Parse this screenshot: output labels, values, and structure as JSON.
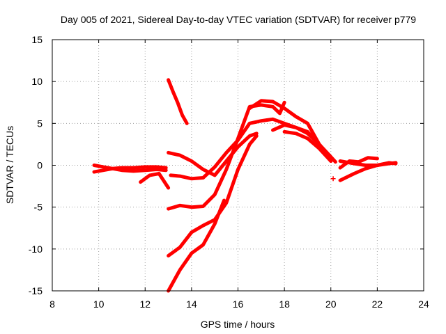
{
  "chart_data": {
    "type": "scatter",
    "title": "Day 005 of 2021, Sidereal Day-to-day VTEC variation (SDTVAR) for receiver p779",
    "xlabel": "GPS time / hours",
    "ylabel": "SDTVAR / TECUs",
    "xlim": [
      8,
      24
    ],
    "ylim": [
      -15,
      15
    ],
    "xticks": [
      8,
      10,
      12,
      14,
      16,
      18,
      20,
      22,
      24
    ],
    "yticks": [
      -15,
      -10,
      -5,
      0,
      5,
      10,
      15
    ],
    "grid": true,
    "legend": "none",
    "color": "#ff0000",
    "series": [
      {
        "x": [
          9.8,
          10.2,
          10.6,
          11.0,
          11.5,
          12.0,
          12.5,
          12.9
        ],
        "y": [
          0.0,
          -0.2,
          -0.4,
          -0.6,
          -0.7,
          -0.6,
          -0.5,
          -0.6
        ]
      },
      {
        "x": [
          9.8,
          10.2,
          10.6,
          11.0,
          11.5,
          12.0,
          12.5,
          12.9
        ],
        "y": [
          -0.8,
          -0.6,
          -0.4,
          -0.3,
          -0.3,
          -0.2,
          -0.2,
          -0.3
        ]
      },
      {
        "x": [
          11.8,
          12.2,
          12.6,
          13.0
        ],
        "y": [
          -2.0,
          -1.2,
          -1.0,
          -2.7
        ]
      },
      {
        "x": [
          13.0,
          13.2,
          13.4,
          13.6,
          13.8
        ],
        "y": [
          10.2,
          8.8,
          7.5,
          6.0,
          5.0
        ]
      },
      {
        "x": [
          13.0,
          13.5,
          14.0,
          14.5,
          15.0,
          15.5,
          16.0,
          16.5,
          16.8
        ],
        "y": [
          1.5,
          1.2,
          0.5,
          -0.5,
          -1.2,
          0.5,
          2.2,
          3.5,
          3.8
        ]
      },
      {
        "x": [
          13.1,
          13.5,
          14.0,
          14.5,
          15.0,
          15.5,
          16.0,
          16.5,
          17.0,
          17.5,
          18.0,
          18.5,
          19.0,
          19.5,
          20.0,
          20.2
        ],
        "y": [
          -1.2,
          -1.3,
          -1.6,
          -1.5,
          -0.2,
          1.5,
          3.0,
          5.0,
          5.3,
          5.5,
          5.0,
          4.5,
          3.8,
          2.5,
          1.0,
          0.4
        ]
      },
      {
        "x": [
          13.0,
          13.5,
          14.0,
          14.5,
          15.0,
          15.5,
          16.0,
          16.5,
          17.0,
          17.5,
          17.8,
          18.0
        ],
        "y": [
          -5.2,
          -4.8,
          -5.0,
          -4.9,
          -3.5,
          -0.5,
          3.2,
          7.0,
          7.2,
          7.0,
          6.2,
          7.5
        ]
      },
      {
        "x": [
          13.0,
          13.5,
          14.0,
          14.5,
          15.0,
          15.5,
          16.0,
          16.5,
          16.8
        ],
        "y": [
          -10.8,
          -9.8,
          -8.0,
          -7.2,
          -6.5,
          -4.5,
          -0.5,
          2.5,
          3.5
        ]
      },
      {
        "x": [
          13.0,
          13.5,
          14.0,
          14.5,
          15.0,
          15.4
        ],
        "y": [
          -15.0,
          -12.5,
          -10.5,
          -9.5,
          -7.0,
          -4.2
        ]
      },
      {
        "x": [
          16.5,
          17.0,
          17.5,
          18.0,
          18.5,
          19.0,
          19.5,
          20.0
        ],
        "y": [
          6.8,
          7.7,
          7.6,
          6.8,
          5.8,
          5.0,
          2.5,
          0.8
        ]
      },
      {
        "x": [
          17.5,
          18.0,
          18.5,
          19.0,
          19.5,
          20.0
        ],
        "y": [
          4.2,
          4.8,
          4.5,
          4.0,
          2.5,
          0.5
        ]
      },
      {
        "x": [
          18.0,
          18.5,
          19.0,
          19.5,
          20.0
        ],
        "y": [
          4.0,
          3.8,
          3.2,
          2.0,
          0.5
        ]
      },
      {
        "x": [
          20.4,
          21.0,
          21.5,
          22.0,
          22.5,
          22.8
        ],
        "y": [
          0.5,
          0.2,
          0.0,
          0.0,
          0.3,
          0.2
        ]
      },
      {
        "x": [
          20.4,
          21.0,
          21.5,
          22.0,
          22.5,
          22.8
        ],
        "y": [
          -1.8,
          -1.0,
          -0.4,
          0.0,
          0.2,
          0.3
        ]
      },
      {
        "x": [
          20.4,
          20.8,
          21.2,
          21.6,
          22.0
        ],
        "y": [
          -0.3,
          0.5,
          0.4,
          0.9,
          0.8
        ]
      }
    ],
    "markers": [
      {
        "x": 20.1,
        "y": -1.6
      }
    ]
  }
}
